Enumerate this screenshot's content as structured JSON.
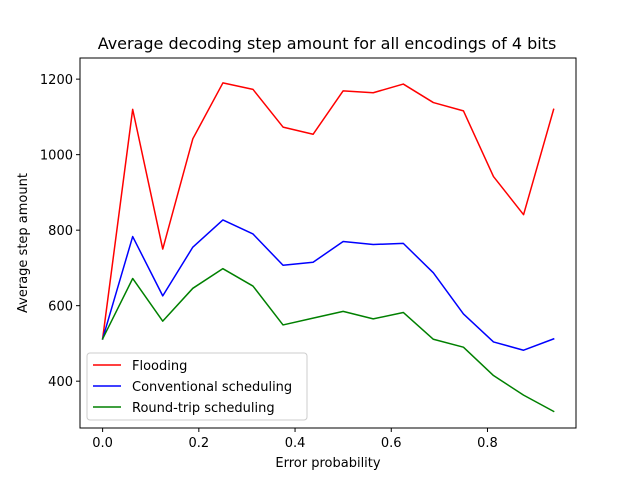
{
  "chart_data": {
    "type": "line",
    "title": "Average decoding step amount for all encodings of 4 bits",
    "xlabel": "Error probability",
    "ylabel": "Average step amount",
    "xlim": [
      -0.047,
      0.984
    ],
    "ylim": [
      276,
      1256
    ],
    "x_ticks": [
      0.0,
      0.2,
      0.4,
      0.6,
      0.8
    ],
    "x_tick_labels": [
      "0.0",
      "0.2",
      "0.4",
      "0.6",
      "0.8"
    ],
    "y_ticks": [
      400,
      600,
      800,
      1000,
      1200
    ],
    "y_tick_labels": [
      "400",
      "600",
      "800",
      "1000",
      "1200"
    ],
    "grid": false,
    "legend_position": "lower-left",
    "x": [
      0.0,
      0.0625,
      0.125,
      0.1875,
      0.25,
      0.3125,
      0.375,
      0.4375,
      0.5,
      0.5625,
      0.625,
      0.6875,
      0.75,
      0.8125,
      0.875,
      0.9375
    ],
    "series": [
      {
        "name": "Flooding",
        "color": "#ff0000",
        "values": [
          512,
          1120,
          750,
          1042,
          1190,
          1173,
          1073,
          1054,
          1169,
          1164,
          1187,
          1138,
          1116,
          942,
          841,
          1120
        ]
      },
      {
        "name": "Conventional scheduling",
        "color": "#0000ff",
        "values": [
          512,
          783,
          626,
          755,
          827,
          790,
          707,
          715,
          770,
          762,
          765,
          687,
          578,
          504,
          482,
          512
        ]
      },
      {
        "name": "Round-trip scheduling",
        "color": "#008000",
        "values": [
          512,
          672,
          559,
          646,
          698,
          652,
          549,
          567,
          585,
          565,
          582,
          511,
          490,
          415,
          363,
          320
        ]
      }
    ]
  }
}
